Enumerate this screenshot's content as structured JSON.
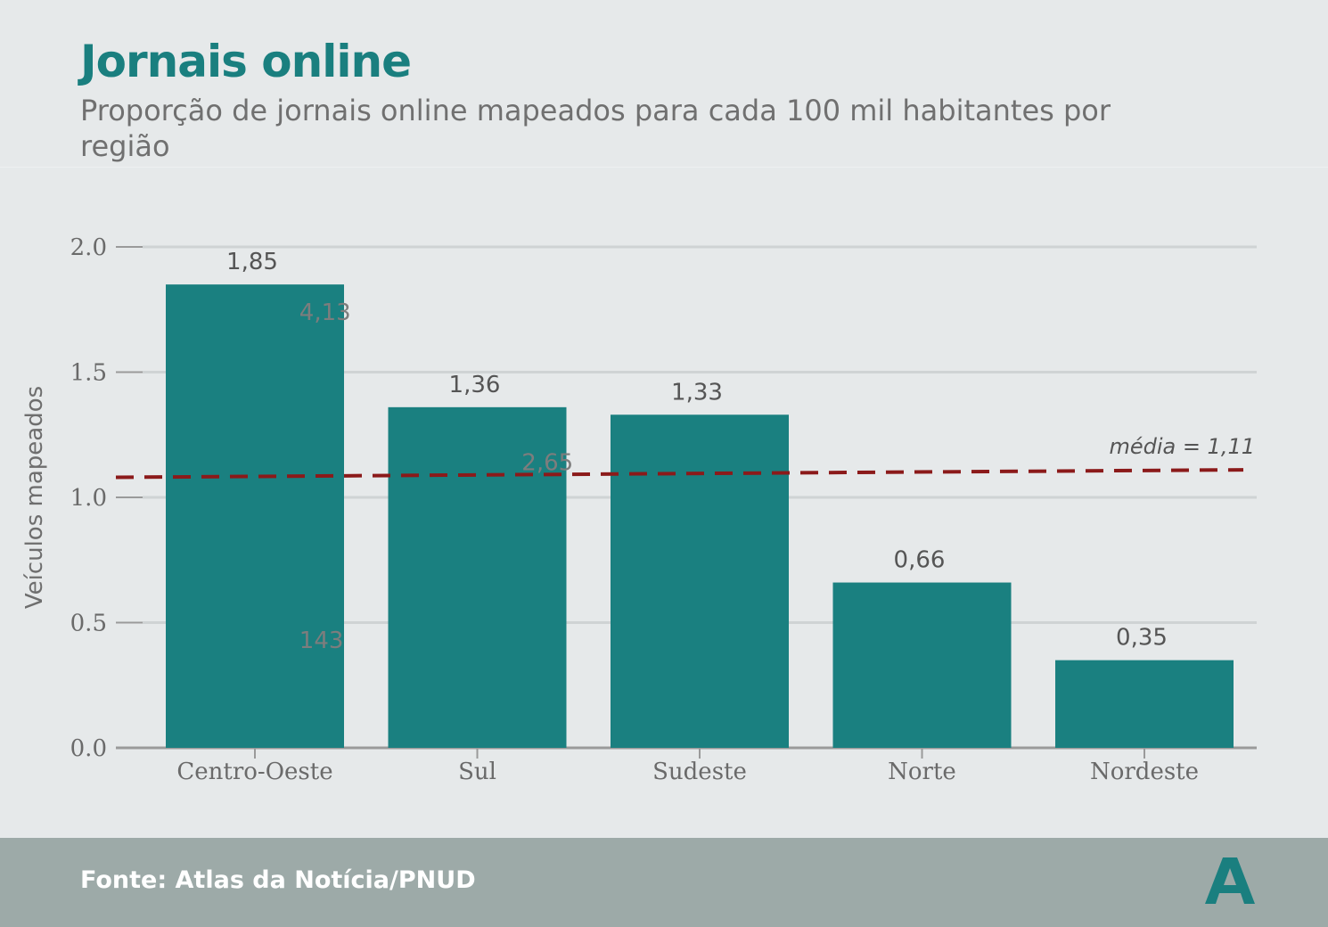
{
  "title": "Jornais online",
  "subtitle": "Proporção de jornais online mapeados para cada 100 mil habitantes por região",
  "source": "Fonte: Atlas da Notícia/PNUD",
  "logo_icon": "atlas-a-logo",
  "colors": {
    "bar": "#1a8080",
    "mean_line": "#8b1a1a",
    "title": "#1a7f7f",
    "footer": "#9daaa8"
  },
  "chart_data": {
    "type": "bar",
    "categories": [
      "Centro-Oeste",
      "Sul",
      "Sudeste",
      "Norte",
      "Nordeste"
    ],
    "values": [
      1.85,
      1.36,
      1.33,
      0.66,
      0.35
    ],
    "value_labels": [
      "1,85",
      "1,36",
      "1,33",
      "0,66",
      "0,35"
    ],
    "ylabel": "Veículos mapeados",
    "ylim": [
      0,
      2.0
    ],
    "yticks": [
      0.0,
      0.5,
      1.0,
      1.5,
      2.0
    ],
    "ytick_labels": [
      "0.0",
      "0.5",
      "1.0",
      "1.5",
      "2.0"
    ],
    "grid": true,
    "mean_line": {
      "label": "média = 1,11",
      "y_start": 1.08,
      "y_end": 1.11
    },
    "ghost_labels": [
      {
        "text": "4,13",
        "x": 0.4,
        "y": 1.74
      },
      {
        "text": "2,65",
        "x": 1.4,
        "y": 1.14
      },
      {
        "text": "143",
        "x": 0.4,
        "y": 0.43
      }
    ]
  }
}
